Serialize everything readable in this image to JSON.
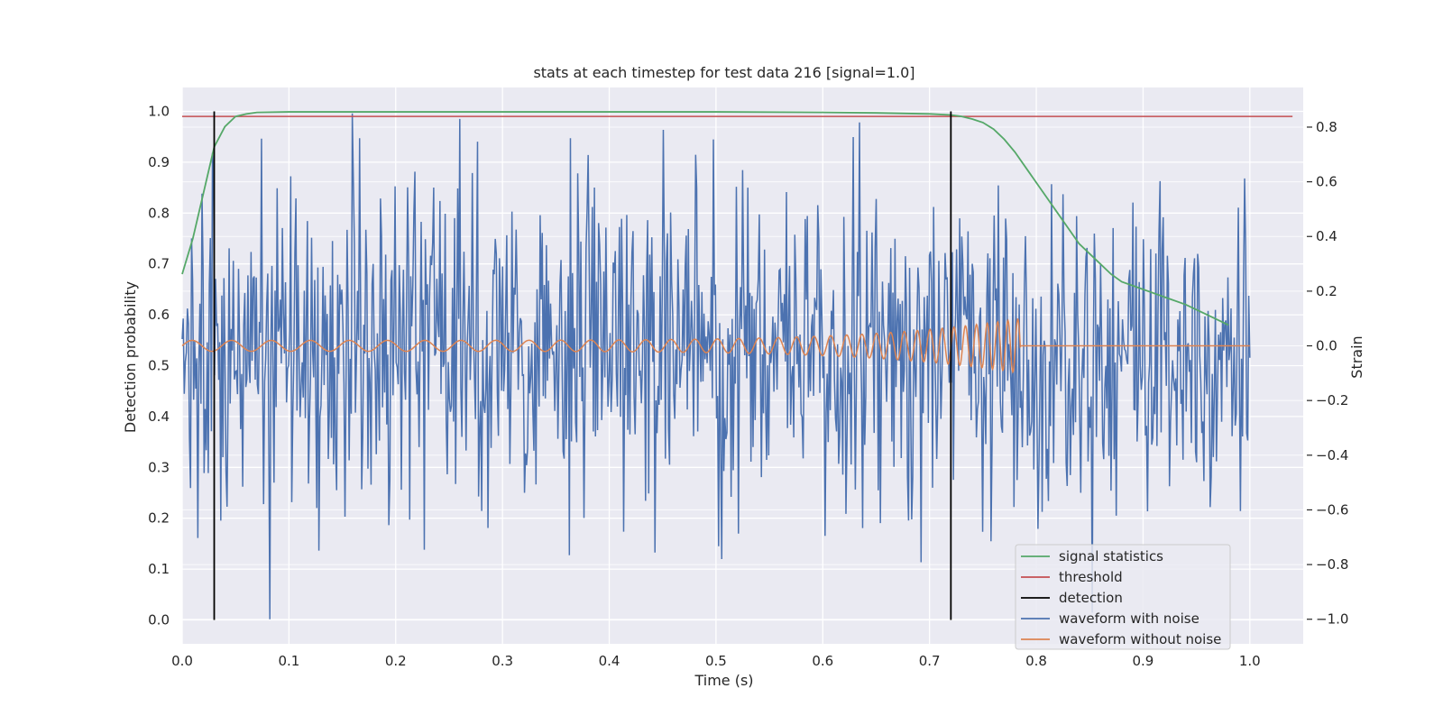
{
  "chart_data": {
    "type": "line",
    "title": "stats at each timestep for test data 216 [signal=1.0]",
    "xlabel": "Time (s)",
    "ylabel": "Detection probability",
    "y2label": "Strain",
    "xlim": [
      0.0,
      1.05
    ],
    "ylim": [
      -0.047,
      1.047
    ],
    "y2lim": [
      -1.09,
      0.945
    ],
    "xticks": [
      0.0,
      0.1,
      0.2,
      0.3,
      0.4,
      0.5,
      0.6,
      0.7,
      0.8,
      0.9,
      1.0
    ],
    "yticks": [
      0.0,
      0.1,
      0.2,
      0.3,
      0.4,
      0.5,
      0.6,
      0.7,
      0.8,
      0.9,
      1.0
    ],
    "y2ticks": [
      -1.0,
      -0.8,
      -0.6,
      -0.4,
      -0.2,
      0.0,
      0.2,
      0.4,
      0.6,
      0.8
    ],
    "grid": true,
    "legend_position": "lower-right",
    "colors": {
      "plot_bg": "#eaeaf2",
      "grid": "#ffffff",
      "signal_statistics": "#55a868",
      "threshold": "#c44e52",
      "detection": "#000000",
      "waveform_with_noise": "#4c72b0",
      "waveform_without_noise": "#dd8452"
    },
    "series": [
      {
        "name": "signal statistics",
        "axis": "left",
        "x": [
          0.0,
          0.01,
          0.02,
          0.03,
          0.04,
          0.05,
          0.06,
          0.07,
          0.1,
          0.2,
          0.3,
          0.4,
          0.5,
          0.6,
          0.65,
          0.7,
          0.72,
          0.73,
          0.74,
          0.75,
          0.76,
          0.77,
          0.78,
          0.79,
          0.8,
          0.81,
          0.82,
          0.83,
          0.84,
          0.85,
          0.86,
          0.87,
          0.88,
          0.9,
          0.92,
          0.94,
          0.96,
          0.98
        ],
        "values": [
          0.68,
          0.75,
          0.84,
          0.93,
          0.97,
          0.99,
          0.995,
          0.998,
          0.999,
          0.999,
          0.999,
          0.999,
          0.999,
          0.998,
          0.997,
          0.995,
          0.993,
          0.99,
          0.985,
          0.978,
          0.965,
          0.945,
          0.92,
          0.89,
          0.86,
          0.83,
          0.8,
          0.77,
          0.74,
          0.72,
          0.7,
          0.68,
          0.665,
          0.65,
          0.635,
          0.62,
          0.6,
          0.58
        ]
      },
      {
        "name": "threshold",
        "axis": "left",
        "x": [
          0.0,
          1.04
        ],
        "values": [
          0.99,
          0.99
        ]
      },
      {
        "name": "detection",
        "axis": "left",
        "segments": [
          {
            "x": 0.03,
            "y": [
              0.0,
              1.0
            ]
          },
          {
            "x": 0.72,
            "y": [
              0.0,
              1.0
            ]
          }
        ]
      },
      {
        "name": "waveform with noise",
        "axis": "right",
        "description_points": 1024,
        "x_range": [
          0.0,
          1.0
        ],
        "amplitude_range": [
          -1.0,
          0.85
        ],
        "std": 0.3
      },
      {
        "name": "waveform without noise",
        "axis": "right",
        "x_range": [
          0.0,
          1.0
        ],
        "amplitude_start": 0.02,
        "amplitude_peak": 0.1,
        "peak_time": 0.785,
        "freq_start": 27,
        "freq_end": 110
      }
    ]
  }
}
